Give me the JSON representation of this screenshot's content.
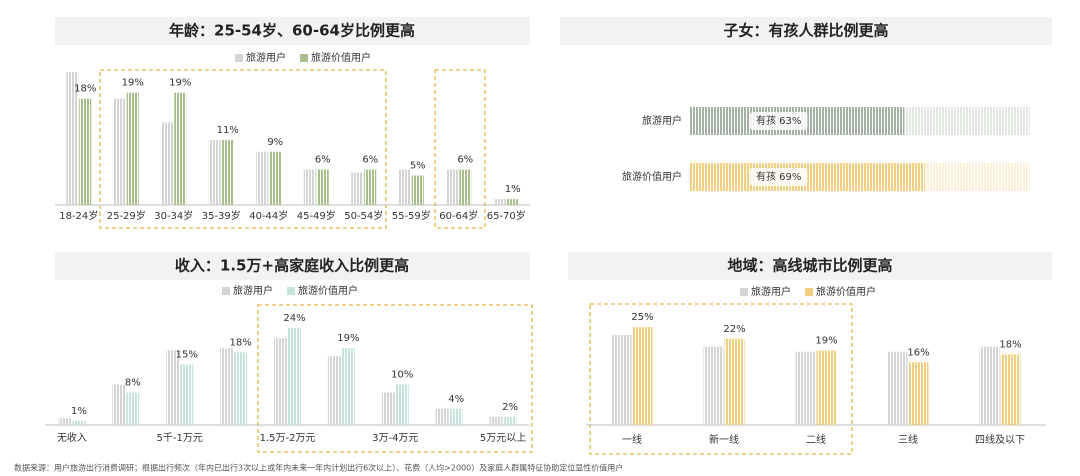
{
  "chart_data": [
    {
      "type": "bar",
      "title": "年龄：25-54岁、60-64岁比例更高",
      "categories": [
        "18-24岁",
        "25-29岁",
        "30-34岁",
        "35-39岁",
        "40-44岁",
        "45-49岁",
        "50-54岁",
        "55-59岁",
        "60-64岁",
        "65-70岁"
      ],
      "series": [
        {
          "name": "旅游用户",
          "color": "#d4d4d4",
          "values": [
            22.5,
            18,
            14,
            11,
            9,
            6,
            5.5,
            6,
            6,
            1
          ]
        },
        {
          "name": "旅游价值用户",
          "color": "#a8bf8c",
          "values": [
            18,
            19,
            19,
            11,
            9,
            6,
            6,
            5,
            6,
            1
          ],
          "value_labels": [
            "18%",
            "19%",
            "19%",
            "11%",
            "9%",
            "6%",
            "6%",
            "5%",
            "6%",
            "1%"
          ]
        }
      ],
      "legend": "top"
    },
    {
      "type": "hbar",
      "title": "子女：有孩人群比例更高",
      "categories": [
        "旅游用户",
        "旅游价值用户"
      ],
      "xlim": [
        0,
        100
      ],
      "series": [
        {
          "name": "有孩",
          "colors": [
            "#a3b1a3",
            "#f2cf80"
          ],
          "values": [
            63,
            69
          ],
          "value_labels": [
            "有孩 63%",
            "有孩 69%"
          ]
        }
      ]
    },
    {
      "type": "bar",
      "title": "收入：1.5万+高家庭收入比例更高",
      "categories": [
        "无收入",
        null,
        "5千-1万元",
        null,
        "1.5万-2万元",
        null,
        "3万-4万元",
        null,
        "5万元以上"
      ],
      "series": [
        {
          "name": "旅游用户",
          "color": "#d4d4d4",
          "values": [
            1.7,
            10,
            18.5,
            19,
            21.5,
            17,
            8,
            4,
            2
          ]
        },
        {
          "name": "旅游价值用户",
          "color": "#c6e5da",
          "values": [
            1,
            8,
            15,
            18,
            24,
            19,
            10,
            4,
            2
          ],
          "value_labels": [
            "1%",
            "8%",
            "15%",
            "18%",
            "24%",
            "19%",
            "10%",
            "4%",
            "2%"
          ]
        }
      ],
      "legend": "top"
    },
    {
      "type": "bar",
      "title": "地域：高线城市比例更高",
      "categories": [
        "一线",
        "新一线",
        "二线",
        "三线",
        "四线及以下"
      ],
      "series": [
        {
          "name": "旅游用户",
          "color": "#d4d4d4",
          "values": [
            23,
            20,
            18.7,
            18.7,
            20
          ]
        },
        {
          "name": "旅游价值用户",
          "color": "#f2cf80",
          "values": [
            25,
            22,
            19,
            16,
            18
          ],
          "value_labels": [
            "25%",
            "22%",
            "19%",
            "16%",
            "18%"
          ]
        }
      ],
      "legend": "top"
    }
  ],
  "source": "数据来源：用户旅游出行消费调研；根据出行频次（年内已出行3次以上或年内未来一年内计划出行6次以上）、花费（人均>2000）及家庭人群属特征协助定位显性价值用户"
}
